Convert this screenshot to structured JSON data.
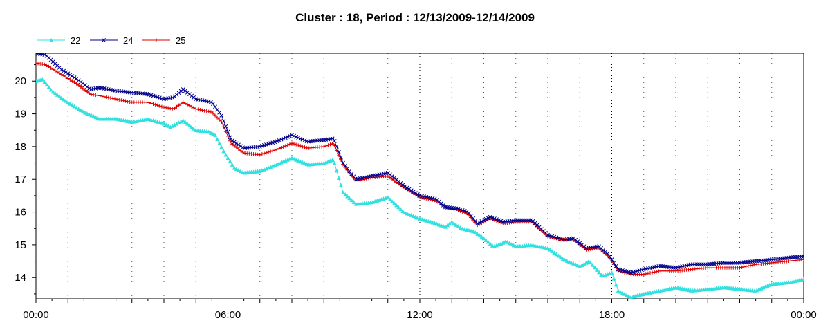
{
  "chart_data": {
    "type": "line",
    "title": "Cluster : 18, Period : 12/13/2009-12/14/2009",
    "xlabel": "",
    "ylabel": "",
    "xlim": [
      0,
      24
    ],
    "ylim": [
      13.35,
      20.85
    ],
    "x_ticks": [
      {
        "value": 0,
        "label": "00:00"
      },
      {
        "value": 6,
        "label": "06:00"
      },
      {
        "value": 12,
        "label": "12:00"
      },
      {
        "value": 18,
        "label": "18:00"
      },
      {
        "value": 24,
        "label": "00:00"
      }
    ],
    "y_ticks": [
      14,
      15,
      16,
      17,
      18,
      19,
      20
    ],
    "grid": "dotted vertical",
    "legend": "top-left",
    "series": [
      {
        "name": "22",
        "color": "#33e0e0",
        "marker": "triangle",
        "points": [
          [
            0,
            20.0
          ],
          [
            0.2,
            20.05
          ],
          [
            0.5,
            19.7
          ],
          [
            1,
            19.35
          ],
          [
            1.5,
            19.05
          ],
          [
            2,
            18.85
          ],
          [
            2.5,
            18.85
          ],
          [
            3,
            18.75
          ],
          [
            3.5,
            18.85
          ],
          [
            4,
            18.7
          ],
          [
            4.2,
            18.6
          ],
          [
            4.6,
            18.8
          ],
          [
            5,
            18.5
          ],
          [
            5.4,
            18.45
          ],
          [
            5.6,
            18.35
          ],
          [
            5.9,
            17.8
          ],
          [
            6.2,
            17.35
          ],
          [
            6.5,
            17.2
          ],
          [
            7,
            17.25
          ],
          [
            7.5,
            17.45
          ],
          [
            8,
            17.65
          ],
          [
            8.5,
            17.45
          ],
          [
            9,
            17.5
          ],
          [
            9.3,
            17.6
          ],
          [
            9.6,
            16.6
          ],
          [
            10,
            16.25
          ],
          [
            10.5,
            16.3
          ],
          [
            11,
            16.45
          ],
          [
            11.5,
            16.0
          ],
          [
            12,
            15.8
          ],
          [
            12.5,
            15.65
          ],
          [
            12.8,
            15.55
          ],
          [
            13,
            15.7
          ],
          [
            13.3,
            15.5
          ],
          [
            13.7,
            15.4
          ],
          [
            14,
            15.2
          ],
          [
            14.3,
            14.95
          ],
          [
            14.7,
            15.1
          ],
          [
            15,
            14.95
          ],
          [
            15.5,
            15.0
          ],
          [
            16,
            14.9
          ],
          [
            16.5,
            14.55
          ],
          [
            17,
            14.35
          ],
          [
            17.3,
            14.5
          ],
          [
            17.7,
            14.05
          ],
          [
            18,
            14.15
          ],
          [
            18.2,
            13.6
          ],
          [
            18.6,
            13.4
          ],
          [
            19,
            13.5
          ],
          [
            19.5,
            13.6
          ],
          [
            20,
            13.7
          ],
          [
            20.5,
            13.6
          ],
          [
            21,
            13.65
          ],
          [
            21.5,
            13.7
          ],
          [
            22,
            13.65
          ],
          [
            22.5,
            13.6
          ],
          [
            23,
            13.8
          ],
          [
            23.5,
            13.85
          ],
          [
            24,
            13.95
          ]
        ]
      },
      {
        "name": "24",
        "color": "#00008b",
        "marker": "cross",
        "points": [
          [
            0,
            20.85
          ],
          [
            0.3,
            20.8
          ],
          [
            0.8,
            20.35
          ],
          [
            1.3,
            20.05
          ],
          [
            1.7,
            19.75
          ],
          [
            2,
            19.8
          ],
          [
            2.5,
            19.7
          ],
          [
            3,
            19.65
          ],
          [
            3.5,
            19.6
          ],
          [
            4,
            19.45
          ],
          [
            4.3,
            19.5
          ],
          [
            4.6,
            19.75
          ],
          [
            5,
            19.45
          ],
          [
            5.5,
            19.35
          ],
          [
            5.8,
            18.95
          ],
          [
            6.1,
            18.2
          ],
          [
            6.5,
            17.95
          ],
          [
            7,
            18.0
          ],
          [
            7.5,
            18.15
          ],
          [
            8,
            18.35
          ],
          [
            8.5,
            18.15
          ],
          [
            9,
            18.2
          ],
          [
            9.3,
            18.25
          ],
          [
            9.6,
            17.5
          ],
          [
            10,
            17.0
          ],
          [
            10.5,
            17.1
          ],
          [
            11,
            17.2
          ],
          [
            11.5,
            16.8
          ],
          [
            12,
            16.5
          ],
          [
            12.5,
            16.4
          ],
          [
            12.8,
            16.15
          ],
          [
            13.2,
            16.1
          ],
          [
            13.5,
            16.0
          ],
          [
            13.8,
            15.65
          ],
          [
            14.2,
            15.85
          ],
          [
            14.6,
            15.7
          ],
          [
            15,
            15.75
          ],
          [
            15.5,
            15.75
          ],
          [
            16,
            15.3
          ],
          [
            16.5,
            15.15
          ],
          [
            16.8,
            15.2
          ],
          [
            17.2,
            14.9
          ],
          [
            17.6,
            14.95
          ],
          [
            17.9,
            14.7
          ],
          [
            18.2,
            14.25
          ],
          [
            18.6,
            14.15
          ],
          [
            19,
            14.25
          ],
          [
            19.5,
            14.35
          ],
          [
            20,
            14.3
          ],
          [
            20.5,
            14.4
          ],
          [
            21,
            14.4
          ],
          [
            21.5,
            14.45
          ],
          [
            22,
            14.45
          ],
          [
            22.5,
            14.5
          ],
          [
            23,
            14.55
          ],
          [
            23.5,
            14.6
          ],
          [
            24,
            14.65
          ]
        ]
      },
      {
        "name": "25",
        "color": "#dd0000",
        "marker": "plus",
        "points": [
          [
            0,
            20.55
          ],
          [
            0.3,
            20.5
          ],
          [
            0.8,
            20.2
          ],
          [
            1.3,
            19.9
          ],
          [
            1.7,
            19.6
          ],
          [
            2,
            19.55
          ],
          [
            2.5,
            19.45
          ],
          [
            3,
            19.35
          ],
          [
            3.5,
            19.35
          ],
          [
            4,
            19.2
          ],
          [
            4.3,
            19.15
          ],
          [
            4.6,
            19.35
          ],
          [
            5,
            19.15
          ],
          [
            5.5,
            19.05
          ],
          [
            5.8,
            18.75
          ],
          [
            6.1,
            18.1
          ],
          [
            6.5,
            17.8
          ],
          [
            7,
            17.75
          ],
          [
            7.5,
            17.9
          ],
          [
            8,
            18.1
          ],
          [
            8.5,
            17.95
          ],
          [
            9,
            18.0
          ],
          [
            9.3,
            18.1
          ],
          [
            9.6,
            17.45
          ],
          [
            10,
            16.95
          ],
          [
            10.5,
            17.05
          ],
          [
            11,
            17.1
          ],
          [
            11.5,
            16.75
          ],
          [
            12,
            16.45
          ],
          [
            12.5,
            16.35
          ],
          [
            12.8,
            16.15
          ],
          [
            13.2,
            16.05
          ],
          [
            13.5,
            15.95
          ],
          [
            13.8,
            15.6
          ],
          [
            14.2,
            15.8
          ],
          [
            14.6,
            15.65
          ],
          [
            15,
            15.7
          ],
          [
            15.5,
            15.7
          ],
          [
            16,
            15.25
          ],
          [
            16.5,
            15.15
          ],
          [
            16.8,
            15.15
          ],
          [
            17.2,
            14.85
          ],
          [
            17.6,
            14.9
          ],
          [
            17.9,
            14.65
          ],
          [
            18.2,
            14.2
          ],
          [
            18.6,
            14.1
          ],
          [
            19,
            14.1
          ],
          [
            19.5,
            14.2
          ],
          [
            20,
            14.2
          ],
          [
            20.5,
            14.25
          ],
          [
            21,
            14.3
          ],
          [
            21.5,
            14.3
          ],
          [
            22,
            14.3
          ],
          [
            22.5,
            14.4
          ],
          [
            23,
            14.45
          ],
          [
            23.5,
            14.5
          ],
          [
            24,
            14.55
          ]
        ]
      }
    ]
  }
}
